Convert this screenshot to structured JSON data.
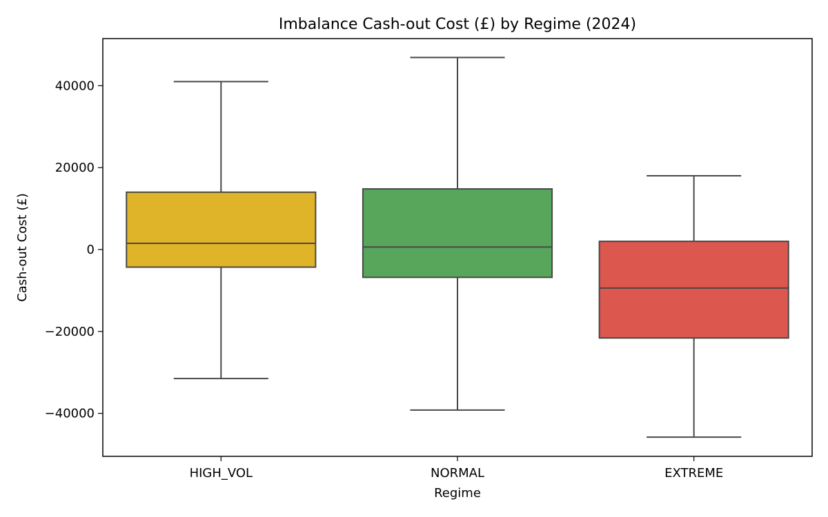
{
  "chart_data": {
    "type": "box",
    "title": "Imbalance Cash-out Cost (£) by Regime (2024)",
    "xlabel": "Regime",
    "ylabel": "Cash-out Cost (£)",
    "ylim": [
      -50500,
      51500
    ],
    "yticks": [
      {
        "value": -40000,
        "label": "−40000"
      },
      {
        "value": -20000,
        "label": "−20000"
      },
      {
        "value": 0,
        "label": "0"
      },
      {
        "value": 20000,
        "label": "20000"
      },
      {
        "value": 40000,
        "label": "40000"
      }
    ],
    "categories": [
      "HIGH_VOL",
      "NORMAL",
      "EXTREME"
    ],
    "boxes": [
      {
        "category": "HIGH_VOL",
        "whisker_low": -31500,
        "q1": -4300,
        "median": 1500,
        "q3": 14000,
        "whisker_high": 41000,
        "color": "#e0b428"
      },
      {
        "category": "NORMAL",
        "whisker_low": -39200,
        "q1": -6800,
        "median": 600,
        "q3": 14800,
        "whisker_high": 46900,
        "color": "#58a55c"
      },
      {
        "category": "EXTREME",
        "whisker_low": -45800,
        "q1": -21600,
        "median": -9400,
        "q3": 2000,
        "whisker_high": 18000,
        "color": "#dc574e"
      }
    ],
    "grid": false,
    "legend": "none"
  }
}
